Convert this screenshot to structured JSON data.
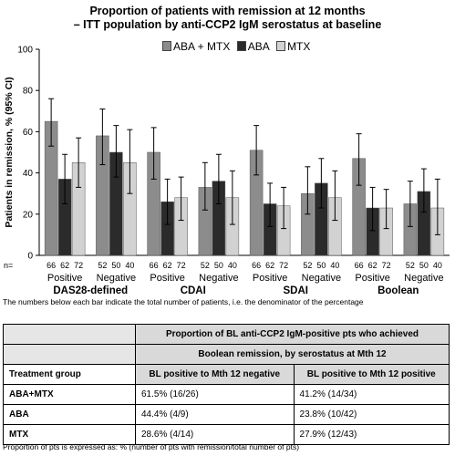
{
  "chart_data": {
    "type": "bar",
    "title_line1": "Proportion of patients with remission at 12 months",
    "title_line2": "– ITT population by anti-CCP2 IgM serostatus at baseline",
    "ylabel": "Patients in remission, % (95% CI)",
    "ylim": [
      0,
      100
    ],
    "yticks": [
      0,
      20,
      40,
      60,
      80,
      100
    ],
    "legend_position": "top",
    "categories": [
      "Positive",
      "Negative",
      "Positive",
      "Negative",
      "Positive",
      "Negative",
      "Positive",
      "Negative"
    ],
    "groups": [
      "DAS28-defined",
      "CDAI",
      "SDAI",
      "Boolean"
    ],
    "n_label": "n=",
    "series": [
      {
        "name": "ABA + MTX",
        "color": "#8c8c8c",
        "values": [
          65,
          58,
          50,
          33,
          51,
          30,
          47,
          25
        ],
        "ci_low": [
          53,
          44,
          37,
          22,
          39,
          20,
          34,
          14
        ],
        "ci_high": [
          76,
          71,
          62,
          45,
          63,
          43,
          59,
          36
        ],
        "n": [
          "66",
          "52",
          "66",
          "52",
          "66",
          "52",
          "66",
          "52"
        ]
      },
      {
        "name": "ABA",
        "color": "#2b2b2b",
        "values": [
          37,
          50,
          26,
          36,
          25,
          35,
          23,
          31
        ],
        "ci_low": [
          25,
          38,
          15,
          25,
          14,
          23,
          12,
          21
        ],
        "ci_high": [
          49,
          63,
          37,
          49,
          35,
          47,
          33,
          42
        ],
        "n": [
          "62",
          "50",
          "62",
          "50",
          "62",
          "50",
          "62",
          "50"
        ]
      },
      {
        "name": "MTX",
        "color": "#d2d2d2",
        "values": [
          45,
          45,
          28,
          28,
          24,
          28,
          23,
          23
        ],
        "ci_low": [
          33,
          30,
          17,
          15,
          13,
          17,
          13,
          10
        ],
        "ci_high": [
          57,
          61,
          38,
          41,
          33,
          41,
          32,
          37
        ],
        "n": [
          "72",
          "40",
          "72",
          "40",
          "72",
          "40",
          "72",
          "40"
        ]
      }
    ]
  },
  "note": "The numbers below each bar indicate the total number of patients, i.e. the denominator of the percentage",
  "table": {
    "header_line1": "Proportion of BL anti-CCP2 IgM-positive pts who achieved",
    "header_line2": "Boolean remission, by serostatus at Mth 12",
    "col_group": "Treatment group",
    "col1": "BL positive to Mth 12 negative",
    "col2": "BL positive to Mth 12 positive",
    "rows": [
      {
        "group": "ABA+MTX",
        "c1": "61.5% (16/26)",
        "c2": "41.2% (14/34)"
      },
      {
        "group": "ABA",
        "c1": "44.4% (4/9)",
        "c2": "23.8% (10/42)"
      },
      {
        "group": "MTX",
        "c1": "28.6% (4/14)",
        "c2": "27.9% (12/43)"
      }
    ]
  },
  "footnote": "Proportion of pts is expressed as: % (number of pts with remission/total number of pts)"
}
